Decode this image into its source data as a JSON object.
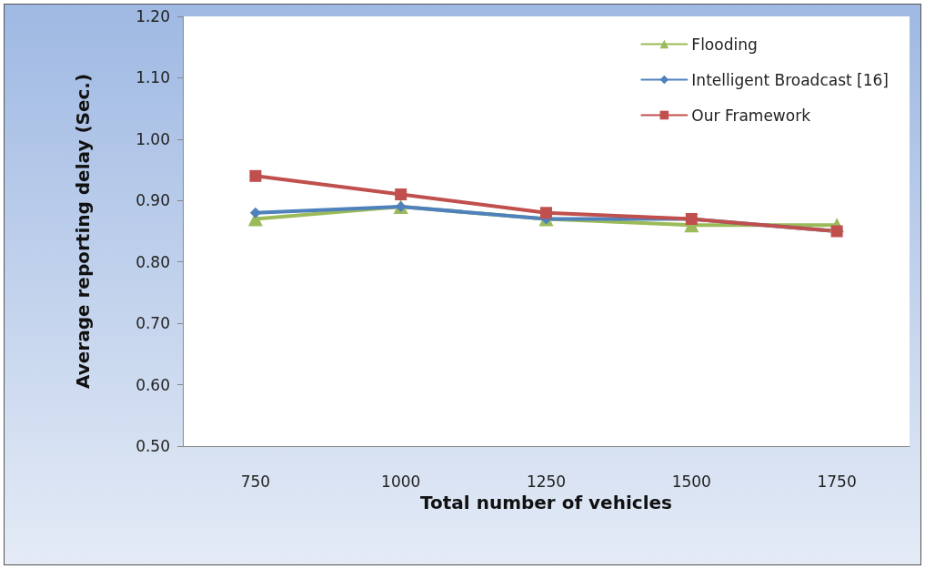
{
  "chart_data": {
    "type": "line",
    "xlabel": "Total number of vehicles",
    "ylabel": "Average reporting delay (Sec.)",
    "categories": [
      "750",
      "1000",
      "1250",
      "1500",
      "1750"
    ],
    "ylim": [
      0.5,
      1.2
    ],
    "yticks": [
      {
        "value": 0.5,
        "label": "0.50"
      },
      {
        "value": 0.6,
        "label": "0.60"
      },
      {
        "value": 0.7,
        "label": "0.70"
      },
      {
        "value": 0.8,
        "label": "0.80"
      },
      {
        "value": 0.9,
        "label": "0.90"
      },
      {
        "value": 1.0,
        "label": "1.00"
      },
      {
        "value": 1.1,
        "label": "1.10"
      },
      {
        "value": 1.2,
        "label": "1.20"
      }
    ],
    "grid": false,
    "legend": "top right",
    "line_style": "solid",
    "series": [
      {
        "name": "Flooding",
        "color": "#9bbb59",
        "marker": "triangle",
        "values": [
          0.87,
          0.89,
          0.87,
          0.86,
          0.86
        ]
      },
      {
        "name": "Intelligent Broadcast [16]",
        "color": "#4f81bd",
        "marker": "diamond",
        "values": [
          0.88,
          0.89,
          0.87,
          0.87,
          0.85
        ]
      },
      {
        "name": "Our Framework",
        "color": "#c0504d",
        "marker": "square",
        "values": [
          0.94,
          0.91,
          0.88,
          0.87,
          0.85
        ]
      }
    ]
  }
}
